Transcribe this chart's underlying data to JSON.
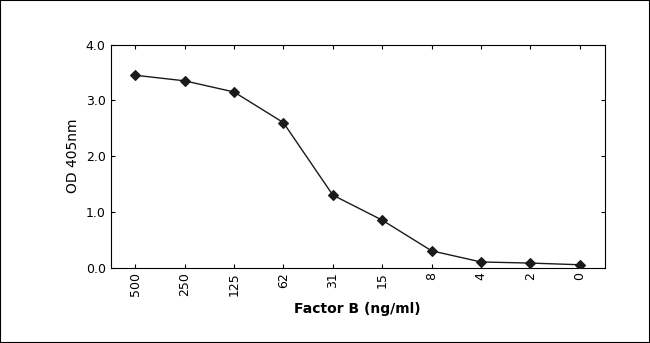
{
  "x_labels": [
    "500",
    "250",
    "125",
    "62",
    "31",
    "15",
    "8",
    "4",
    "2",
    "0"
  ],
  "x_positions": [
    0,
    1,
    2,
    3,
    4,
    5,
    6,
    7,
    8,
    9
  ],
  "y_values": [
    3.45,
    3.35,
    3.15,
    2.6,
    1.3,
    0.85,
    0.3,
    0.1,
    0.08,
    0.05
  ],
  "xlabel": "Factor B (ng/ml)",
  "ylabel": "OD 405nm",
  "ylim": [
    0.0,
    4.0
  ],
  "yticks": [
    0.0,
    1.0,
    2.0,
    3.0,
    4.0
  ],
  "ytick_labels": [
    "0.0",
    "1.0",
    "2.0",
    "3.0",
    "4.0"
  ],
  "line_color": "#1a1a1a",
  "marker": "D",
  "marker_size": 5,
  "marker_facecolor": "#1a1a1a",
  "line_style": "-",
  "line_width": 1.0,
  "bg_color": "#ffffff",
  "outer_bg": "#ffffff",
  "axis_label_fontsize": 10,
  "tick_fontsize": 9
}
